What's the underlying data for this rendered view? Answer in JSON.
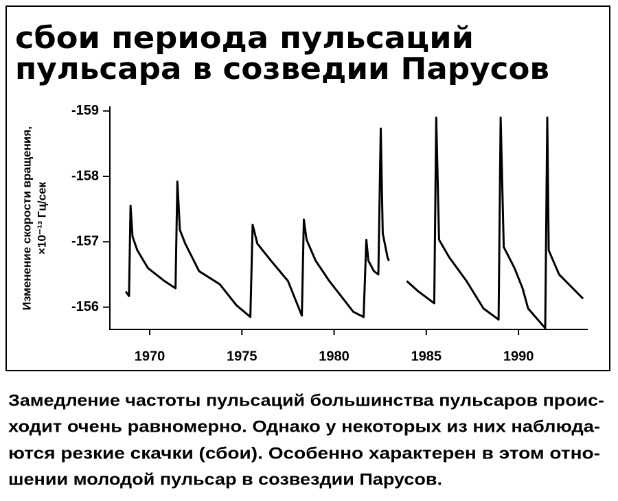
{
  "chart_data": {
    "type": "line",
    "title": [
      "сбои периода пульсаций",
      "пульсара в созведии Парусов"
    ],
    "y_label": [
      "Изменение скорости вращения,",
      "×10⁻¹³ Гц/сек"
    ],
    "x": [
      1968.7,
      1968.88,
      1968.96,
      1969.07,
      1969.33,
      1969.9,
      1970.8,
      1971.4,
      1971.5,
      1971.64,
      1971.93,
      1972.68,
      1973.8,
      1974.7,
      1975.46,
      1975.58,
      1975.84,
      1976.58,
      1977.5,
      1978.25,
      1978.36,
      1978.51,
      1979.0,
      1979.74,
      1981.04,
      1981.6,
      1981.75,
      1981.86,
      1982.16,
      1982.4,
      1982.53,
      1982.64,
      1982.9,
      1982.97,
      1983.5,
      1983.94,
      1984.57,
      1985.43,
      1985.54,
      1985.69,
      1986.25,
      1987.18,
      1988.1,
      1988.92,
      1989.03,
      1989.2,
      1989.78,
      1990.22,
      1990.52,
      1991.45,
      1991.56,
      1991.64,
      1992.2,
      1992.94,
      1993.5
    ],
    "series": [
      {
        "color": "#000000",
        "values": [
          -156.24,
          -156.17,
          -157.55,
          -157.08,
          -156.87,
          -156.6,
          -156.4,
          -156.29,
          -157.92,
          -157.18,
          -156.97,
          -156.55,
          -156.35,
          -156.03,
          -155.85,
          -157.26,
          -156.97,
          -156.71,
          -156.4,
          -155.87,
          -157.34,
          -157.03,
          -156.71,
          -156.4,
          -155.93,
          -155.85,
          -157.03,
          -156.71,
          -156.55,
          -156.5,
          -158.73,
          -157.13,
          -156.76,
          -156.71,
          null,
          -156.4,
          -156.24,
          -156.06,
          -158.9,
          -157.03,
          -156.76,
          -156.4,
          -155.98,
          -155.81,
          -158.9,
          -156.92,
          -156.6,
          -156.29,
          -155.98,
          -155.68,
          -158.9,
          -156.87,
          -156.5,
          -156.29,
          -156.13
        ]
      }
    ],
    "xlim": [
      1967.84,
      1993.72
    ],
    "xticks": [
      1970,
      1975,
      1980,
      1985,
      1990
    ],
    "ylim": [
      -155.66,
      -159.07
    ],
    "yticks": [
      -159,
      -158,
      -157,
      -156
    ]
  },
  "caption": [
    "Замедление частоты пульсаций большинства пульсаров проис-",
    "ходит очень равномерно. Однако у некоторых из них наблюда-",
    "ются резкие скачки (сбои). Особенно характерен в этом отно-",
    "шении молодой пульсар в созвездии Парусов."
  ]
}
